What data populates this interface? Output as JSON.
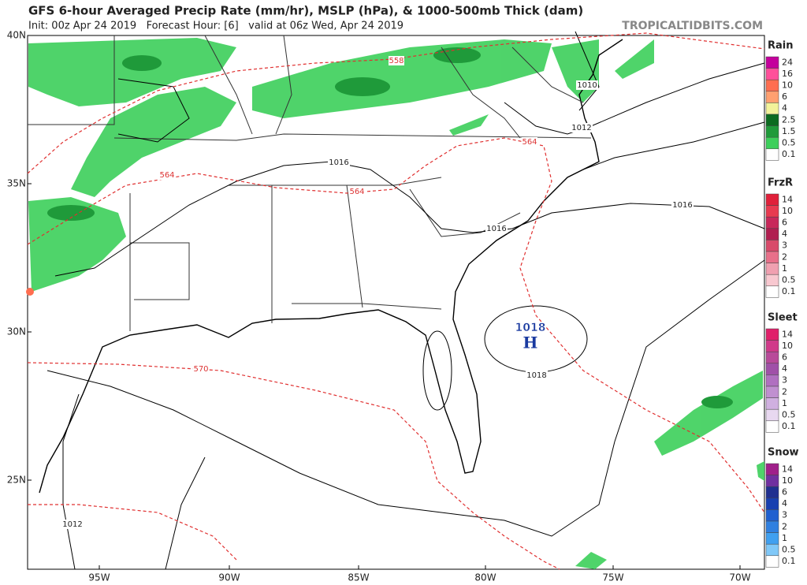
{
  "header": {
    "title": "GFS 6-hour Averaged Precip Rate (mm/hr), MSLP (hPa), & 1000-500mb Thick (dam)",
    "subtitle": "Init: 00z Apr 24 2019   Forecast Hour: [6]   valid at 06z Wed, Apr 24 2019",
    "watermark": "TROPICALTIDBITS.COM"
  },
  "map": {
    "lat_labels": [
      "40N",
      "35N",
      "30N",
      "25N"
    ],
    "lon_labels": [
      "95W",
      "90W",
      "85W",
      "80W",
      "75W",
      "70W"
    ],
    "isobar_labels": [
      "1010",
      "1012",
      "1016",
      "1016",
      "1016",
      "1018",
      "1012"
    ],
    "thickness_labels": [
      "558",
      "564",
      "564",
      "564",
      "570"
    ],
    "high": {
      "pressure": "1018",
      "letter": "H"
    }
  },
  "legend": [
    {
      "title": "Rain",
      "labels": [
        "24",
        "16",
        "10",
        "6",
        "4",
        "2.5",
        "1.5",
        "0.5",
        "0.1"
      ],
      "colors": [
        "#c4009c",
        "#ff4f9a",
        "#ff6e50",
        "#ffa070",
        "#f2f29a",
        "#0b6b20",
        "#1f9a3a",
        "#3ccf5a",
        "#ffffff"
      ]
    },
    {
      "title": "FrzR",
      "labels": [
        "14",
        "10",
        "6",
        "4",
        "3",
        "2",
        "1",
        "0.5",
        "0.1"
      ],
      "colors": [
        "#e0203a",
        "#e83a50",
        "#c8285a",
        "#b01e50",
        "#d84a6a",
        "#e8708a",
        "#f0a0b0",
        "#f8c8d0",
        "#ffffff"
      ]
    },
    {
      "title": "Sleet",
      "labels": [
        "14",
        "10",
        "6",
        "4",
        "3",
        "2",
        "1",
        "0.5",
        "0.1"
      ],
      "colors": [
        "#e0206a",
        "#d03a8a",
        "#b84a9a",
        "#a050a8",
        "#b070c0",
        "#c090d0",
        "#d0b0e0",
        "#e8d8f0",
        "#ffffff"
      ]
    },
    {
      "title": "Snow",
      "labels": [
        "14",
        "10",
        "6",
        "4",
        "3",
        "2",
        "1",
        "0.5",
        "0.1"
      ],
      "colors": [
        "#a0208a",
        "#7030a0",
        "#203090",
        "#1840b0",
        "#2060d0",
        "#3080e0",
        "#40a0f0",
        "#80c8f8",
        "#ffffff"
      ]
    }
  ]
}
